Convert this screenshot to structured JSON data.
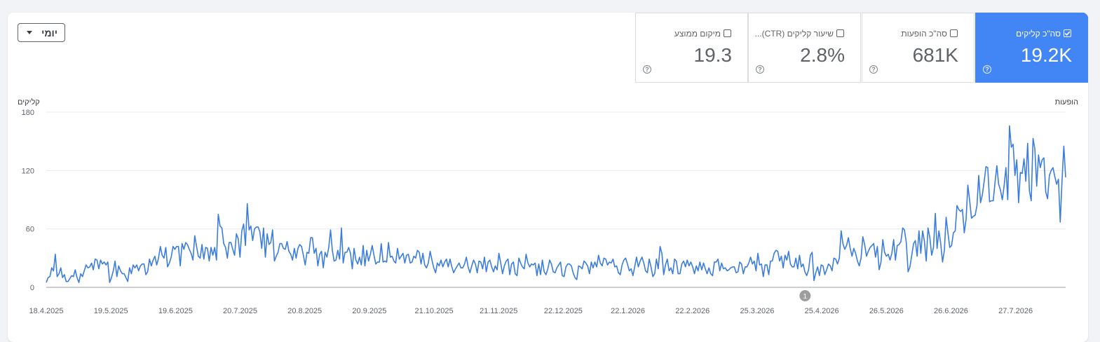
{
  "period_select": {
    "label": "יומי"
  },
  "metrics": [
    {
      "key": "clicks",
      "label": "סה\"כ קליקים",
      "value": "19.2K",
      "checked": true
    },
    {
      "key": "impressions",
      "label": "סה\"כ הופעות",
      "value": "681K",
      "checked": false
    },
    {
      "key": "ctr",
      "label": "שיעור קליקים (CTR)...",
      "value": "2.8%",
      "checked": false
    },
    {
      "key": "position",
      "label": "מיקום ממוצע",
      "value": "19.3",
      "checked": false
    }
  ],
  "colors": {
    "accent": "#4285f4",
    "line": "#3b7ddd"
  },
  "chart_data": {
    "type": "line",
    "left_axis_label": "קליקים",
    "right_axis_label": "הופעות",
    "ylim": [
      0,
      180
    ],
    "y_ticks": [
      "0",
      "60",
      "120",
      "180"
    ],
    "x_tick_labels": [
      "18.4.2025",
      "19.5.2025",
      "19.6.2025",
      "20.7.2025",
      "20.8.2025",
      "20.9.2025",
      "21.10.2025",
      "21.11.2025",
      "22.12.2025",
      "22.1.2026",
      "22.2.2026",
      "25.3.2026",
      "25.4.2026",
      "26.5.2026",
      "26.6.2026",
      "27.7.2026"
    ],
    "x_range": [
      "18.4.2025",
      "20.8.2026"
    ],
    "annotation": {
      "label": "1",
      "date": "17.4.2026"
    },
    "grid": true,
    "series": [
      {
        "values": [
          5,
          10,
          11,
          20,
          17,
          34,
          11,
          14,
          20,
          10,
          13,
          6,
          6,
          9,
          12,
          11,
          18,
          10,
          5,
          14,
          11,
          17,
          23,
          20,
          21,
          25,
          18,
          29,
          28,
          19,
          28,
          24,
          26,
          23,
          26,
          5,
          10,
          17,
          27,
          11,
          22,
          17,
          14,
          14,
          10,
          6,
          20,
          14,
          23,
          20,
          23,
          17,
          22,
          24,
          24,
          13,
          16,
          29,
          22,
          28,
          32,
          23,
          30,
          42,
          33,
          30,
          41,
          21,
          25,
          31,
          42,
          39,
          42,
          42,
          22,
          45,
          39,
          46,
          44,
          39,
          35,
          28,
          53,
          42,
          32,
          30,
          44,
          29,
          41,
          40,
          27,
          41,
          33,
          41,
          28,
          75,
          63,
          61,
          45,
          41,
          30,
          46,
          46,
          39,
          33,
          55,
          50,
          31,
          58,
          65,
          43,
          86,
          59,
          63,
          48,
          60,
          62,
          62,
          57,
          40,
          61,
          31,
          55,
          44,
          46,
          59,
          27,
          32,
          36,
          45,
          45,
          40,
          39,
          47,
          37,
          34,
          28,
          40,
          30,
          40,
          44,
          42,
          33,
          23,
          36,
          35,
          51,
          51,
          35,
          40,
          22,
          34,
          37,
          20,
          36,
          31,
          41,
          59,
          38,
          27,
          28,
          38,
          29,
          61,
          25,
          36,
          36,
          41,
          35,
          19,
          40,
          28,
          24,
          31,
          23,
          43,
          22,
          38,
          27,
          34,
          43,
          33,
          24,
          26,
          26,
          45,
          26,
          27,
          26,
          46,
          31,
          32,
          27,
          25,
          40,
          29,
          32,
          35,
          25,
          33,
          34,
          25,
          26,
          32,
          30,
          38,
          36,
          24,
          35,
          23,
          20,
          25,
          37,
          28,
          20,
          15,
          25,
          22,
          28,
          21,
          26,
          29,
          21,
          29,
          21,
          15,
          19,
          22,
          25,
          20,
          20,
          24,
          31,
          21,
          15,
          22,
          28,
          24,
          15,
          27,
          26,
          19,
          31,
          16,
          26,
          28,
          21,
          16,
          22,
          18,
          35,
          25,
          14,
          22,
          27,
          29,
          13,
          24,
          26,
          14,
          12,
          30,
          25,
          21,
          19,
          34,
          25,
          21,
          24,
          23,
          25,
          12,
          24,
          13,
          28,
          16,
          13,
          19,
          28,
          24,
          16,
          15,
          20,
          23,
          26,
          12,
          11,
          21,
          24,
          24,
          22,
          15,
          10,
          8,
          22,
          21,
          19,
          27,
          25,
          22,
          14,
          26,
          20,
          26,
          21,
          33,
          25,
          22,
          30,
          29,
          23,
          26,
          25,
          29,
          21,
          22,
          15,
          13,
          23,
          28,
          30,
          24,
          17,
          19,
          12,
          21,
          31,
          21,
          27,
          31,
          25,
          17,
          15,
          29,
          21,
          11,
          14,
          29,
          19,
          42,
          35,
          13,
          23,
          29,
          17,
          20,
          14,
          29,
          27,
          14,
          14,
          24,
          27,
          21,
          28,
          22,
          26,
          21,
          14,
          22,
          17,
          26,
          18,
          25,
          19,
          14,
          20,
          14,
          12,
          26,
          26,
          29,
          17,
          25,
          19,
          20,
          17,
          18,
          20,
          21,
          21,
          15,
          16,
          26,
          24,
          14,
          21,
          21,
          25,
          31,
          24,
          27,
          17,
          35,
          23,
          24,
          11,
          23,
          23,
          13,
          27,
          27,
          35,
          38,
          37,
          27,
          32,
          20,
          33,
          28,
          37,
          24,
          21,
          21,
          30,
          19,
          33,
          21,
          24,
          16,
          12,
          18,
          33,
          36,
          7,
          15,
          21,
          12,
          23,
          22,
          13,
          18,
          24,
          22,
          17,
          30,
          29,
          24,
          30,
          58,
          45,
          39,
          43,
          51,
          40,
          32,
          40,
          35,
          27,
          22,
          30,
          52,
          44,
          32,
          37,
          41,
          43,
          45,
          31,
          42,
          18,
          26,
          49,
          36,
          32,
          34,
          28,
          35,
          49,
          28,
          43,
          44,
          47,
          61,
          59,
          46,
          16,
          21,
          33,
          45,
          48,
          32,
          58,
          35,
          58,
          47,
          27,
          61,
          51,
          33,
          41,
          76,
          40,
          58,
          45,
          26,
          38,
          72,
          56,
          41,
          43,
          56,
          58,
          84,
          80,
          78,
          80,
          56,
          70,
          105,
          89,
          71,
          73,
          74,
          84,
          115,
          87,
          95,
          109,
          124,
          123,
          88,
          89,
          89,
          108,
          125,
          106,
          100,
          90,
          104,
          123,
          90,
          166,
          144,
          147,
          115,
          131,
          87,
          118,
          117,
          132,
          109,
          148,
          99,
          89,
          153,
          142,
          104,
          136,
          123,
          131,
          133,
          98,
          91,
          115,
          120,
          123,
          114,
          106,
          111,
          67,
          109,
          145,
          113
        ]
      }
    ]
  }
}
